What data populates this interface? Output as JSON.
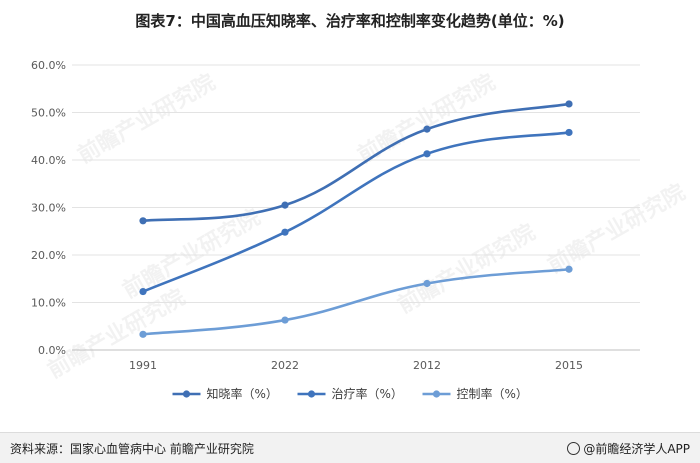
{
  "page": {
    "title": "图表7：中国高血压知晓率、治疗率和控制率变化趋势(单位：%)",
    "source": "资料来源：国家心血管病中心 前瞻产业研究院",
    "brand": "@前瞻经济学人APP",
    "watermark": "前瞻产业研究院"
  },
  "chart_data": {
    "type": "line",
    "smooth": true,
    "categories": [
      "1991",
      "2022",
      "2012",
      "2015"
    ],
    "series": [
      {
        "name": "知晓率（%）",
        "values": [
          27.2,
          30.5,
          46.5,
          51.8
        ],
        "color": "#3f6fb4"
      },
      {
        "name": "治疗率（%）",
        "values": [
          12.3,
          24.8,
          41.3,
          45.8
        ],
        "color": "#3f74bd"
      },
      {
        "name": "控制率（%）",
        "values": [
          3.3,
          6.3,
          14.0,
          17.0
        ],
        "color": "#6d9dd6"
      }
    ],
    "ylim": [
      0,
      60
    ],
    "yticks": [
      0,
      10,
      20,
      30,
      40,
      50,
      60
    ],
    "ytick_labels": [
      "0.0%",
      "10.0%",
      "20.0%",
      "30.0%",
      "40.0%",
      "50.0%",
      "60.0%"
    ],
    "grid": true,
    "legend_position": "bottom"
  }
}
